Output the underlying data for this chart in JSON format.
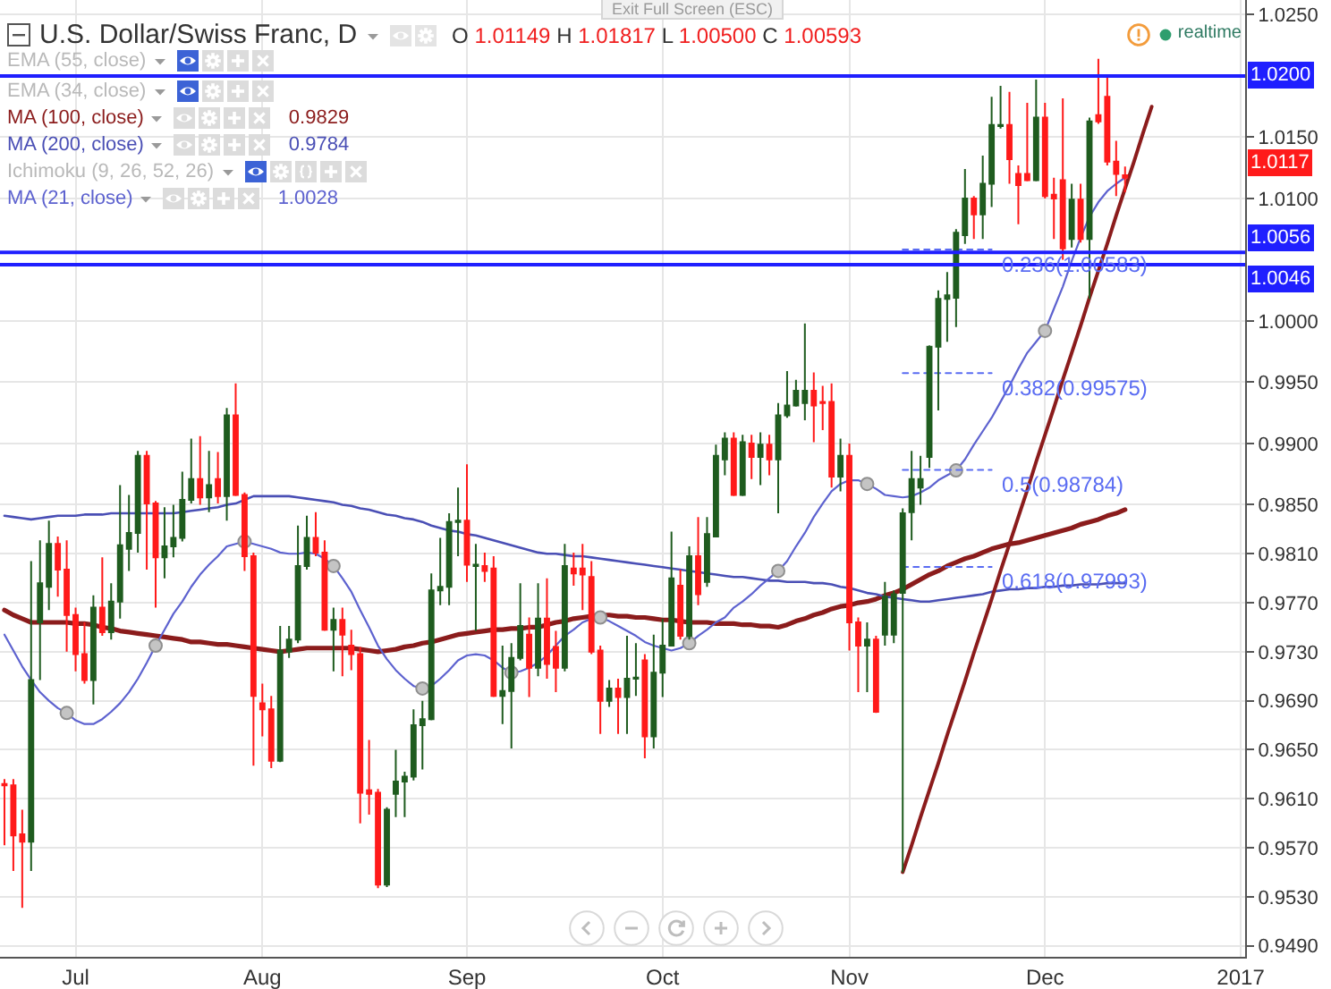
{
  "chart_data": {
    "type": "candlestick",
    "title": "U.S. Dollar/Swiss Franc, D",
    "subtitle": "O 1.01149 H 1.01817 L 1.00500 C 1.00593",
    "categories": [
      null,
      null,
      null,
      null,
      null,
      null,
      null,
      null,
      "Jul",
      null,
      null,
      null,
      null,
      null,
      null,
      null,
      null,
      null,
      null,
      null,
      null,
      null,
      null,
      null,
      null,
      null,
      null,
      null,
      null,
      "Aug",
      null,
      null,
      null,
      null,
      null,
      null,
      null,
      null,
      null,
      null,
      null,
      null,
      null,
      null,
      null,
      null,
      null,
      null,
      null,
      null,
      null,
      null,
      "Sep",
      null,
      null,
      null,
      null,
      null,
      null,
      null,
      null,
      null,
      null,
      null,
      null,
      null,
      null,
      null,
      null,
      null,
      null,
      null,
      null,
      null,
      "Oct",
      null,
      null,
      null,
      null,
      null,
      null,
      null,
      null,
      null,
      null,
      null,
      null,
      null,
      null,
      null,
      null,
      null,
      null,
      null,
      null,
      "Nov",
      null,
      null,
      null,
      null,
      null,
      null,
      null,
      null,
      null,
      null,
      null,
      null,
      null,
      null,
      null,
      null,
      null,
      null,
      null,
      null,
      null,
      "Dec",
      null,
      null,
      null,
      null,
      null,
      null,
      null,
      null,
      null,
      null,
      null,
      null,
      null,
      null,
      null,
      null,
      null,
      null,
      null,
      null,
      null,
      "2017"
    ],
    "ohlc": [
      [
        0.9622,
        0.9626,
        0.9572,
        0.9621
      ],
      [
        0.9621,
        0.9626,
        0.9551,
        0.958
      ],
      [
        0.9581,
        0.9601,
        0.9521,
        0.9575
      ],
      [
        0.9575,
        0.9804,
        0.9551,
        0.9707
      ],
      [
        0.9754,
        0.9821,
        0.9707,
        0.9786
      ],
      [
        0.9783,
        0.9837,
        0.9764,
        0.9818
      ],
      [
        0.9818,
        0.9824,
        0.9775,
        0.9797
      ],
      [
        0.9797,
        0.9821,
        0.973,
        0.976
      ],
      [
        0.976,
        0.9766,
        0.9714,
        0.9728
      ],
      [
        0.9728,
        0.9754,
        0.9704,
        0.9707
      ],
      [
        0.9707,
        0.9776,
        0.9687,
        0.9766
      ],
      [
        0.9766,
        0.9807,
        0.9743,
        0.9746
      ],
      [
        0.9746,
        0.9786,
        0.974,
        0.9771
      ],
      [
        0.9771,
        0.9866,
        0.9757,
        0.9817
      ],
      [
        0.9814,
        0.9858,
        0.9796,
        0.9827
      ],
      [
        0.9827,
        0.9894,
        0.9811,
        0.989
      ],
      [
        0.989,
        0.9894,
        0.9797,
        0.9851
      ],
      [
        0.9851,
        0.9853,
        0.9766,
        0.9807
      ],
      [
        0.9807,
        0.9848,
        0.979,
        0.9816
      ],
      [
        0.9816,
        0.985,
        0.9807,
        0.9823
      ],
      [
        0.9823,
        0.9877,
        0.982,
        0.9854
      ],
      [
        0.9854,
        0.9904,
        0.9851,
        0.9871
      ],
      [
        0.9871,
        0.9906,
        0.985,
        0.9856
      ],
      [
        0.9856,
        0.9894,
        0.9844,
        0.9866
      ],
      [
        0.9871,
        0.9893,
        0.9851,
        0.9857
      ],
      [
        0.9857,
        0.9929,
        0.9837,
        0.9923
      ],
      [
        0.9923,
        0.9949,
        0.9857,
        0.9858
      ],
      [
        0.9858,
        0.986,
        0.9796,
        0.9808
      ],
      [
        0.9808,
        0.9811,
        0.9637,
        0.9694
      ],
      [
        0.9688,
        0.9704,
        0.9661,
        0.9683
      ],
      [
        0.9683,
        0.9694,
        0.9635,
        0.9641
      ],
      [
        0.9641,
        0.9751,
        0.964,
        0.9731
      ],
      [
        0.973,
        0.9751,
        0.9725,
        0.974
      ],
      [
        0.974,
        0.9833,
        0.9737,
        0.98
      ],
      [
        0.98,
        0.9841,
        0.9797,
        0.9823
      ],
      [
        0.9823,
        0.9844,
        0.9808,
        0.9811
      ],
      [
        0.9811,
        0.9821,
        0.9747,
        0.9748
      ],
      [
        0.9748,
        0.9766,
        0.9714,
        0.9756
      ],
      [
        0.9756,
        0.9766,
        0.971,
        0.9744
      ],
      [
        0.9735,
        0.9748,
        0.9715,
        0.9728
      ],
      [
        0.9728,
        0.9734,
        0.959,
        0.9615
      ],
      [
        0.9617,
        0.9658,
        0.9597,
        0.9614
      ],
      [
        0.9615,
        0.9618,
        0.9537,
        0.954
      ],
      [
        0.954,
        0.9603,
        0.9538,
        0.9601
      ],
      [
        0.9614,
        0.965,
        0.9595,
        0.9624
      ],
      [
        0.9624,
        0.9632,
        0.9595,
        0.9628
      ],
      [
        0.9628,
        0.9683,
        0.9625,
        0.967
      ],
      [
        0.967,
        0.969,
        0.9634,
        0.9675
      ],
      [
        0.9675,
        0.9794,
        0.9674,
        0.978
      ],
      [
        0.978,
        0.9823,
        0.9768,
        0.9783
      ],
      [
        0.9783,
        0.9843,
        0.9768,
        0.9836
      ],
      [
        0.9836,
        0.9864,
        0.9808,
        0.9837
      ],
      [
        0.9837,
        0.9883,
        0.9787,
        0.9801
      ],
      [
        0.98,
        0.9818,
        0.9747,
        0.9801
      ],
      [
        0.98,
        0.9811,
        0.9787,
        0.9796
      ],
      [
        0.9798,
        0.9808,
        0.9693,
        0.9694
      ],
      [
        0.9694,
        0.9735,
        0.9671,
        0.9698
      ],
      [
        0.9698,
        0.9737,
        0.9651,
        0.9725
      ],
      [
        0.9725,
        0.9786,
        0.9723,
        0.9751
      ],
      [
        0.9744,
        0.9758,
        0.9693,
        0.9717
      ],
      [
        0.9717,
        0.9786,
        0.971,
        0.9757
      ],
      [
        0.9757,
        0.979,
        0.9708,
        0.972
      ],
      [
        0.9734,
        0.9747,
        0.9697,
        0.9717
      ],
      [
        0.9717,
        0.9818,
        0.9714,
        0.98
      ],
      [
        0.9798,
        0.9811,
        0.9784,
        0.9794
      ],
      [
        0.9798,
        0.9818,
        0.9764,
        0.9793
      ],
      [
        0.9791,
        0.9804,
        0.9728,
        0.973
      ],
      [
        0.9731,
        0.9735,
        0.9663,
        0.969
      ],
      [
        0.969,
        0.9707,
        0.9685,
        0.97
      ],
      [
        0.97,
        0.9708,
        0.9663,
        0.9693
      ],
      [
        0.9693,
        0.9743,
        0.9663,
        0.9708
      ],
      [
        0.9708,
        0.9737,
        0.9694,
        0.9709
      ],
      [
        0.9723,
        0.9728,
        0.9643,
        0.9661
      ],
      [
        0.9661,
        0.9744,
        0.9651,
        0.9713
      ],
      [
        0.9713,
        0.9757,
        0.9693,
        0.9735
      ],
      [
        0.9735,
        0.9828,
        0.9735,
        0.979
      ],
      [
        0.9784,
        0.9797,
        0.974,
        0.9743
      ],
      [
        0.9743,
        0.9816,
        0.974,
        0.9808
      ],
      [
        0.9808,
        0.984,
        0.9768,
        0.9777
      ],
      [
        0.9787,
        0.984,
        0.9783,
        0.9826
      ],
      [
        0.9824,
        0.9899,
        0.9824,
        0.989
      ],
      [
        0.9887,
        0.9909,
        0.9874,
        0.9904
      ],
      [
        0.9904,
        0.9909,
        0.9857,
        0.9858
      ],
      [
        0.9858,
        0.9907,
        0.9857,
        0.9901
      ],
      [
        0.99,
        0.9907,
        0.9871,
        0.9889
      ],
      [
        0.9889,
        0.9909,
        0.9866,
        0.9899
      ],
      [
        0.9899,
        0.9907,
        0.9874,
        0.9887
      ],
      [
        0.9887,
        0.9933,
        0.9843,
        0.9923
      ],
      [
        0.9923,
        0.9959,
        0.9921,
        0.9931
      ],
      [
        0.9931,
        0.9952,
        0.993,
        0.9943
      ],
      [
        0.9933,
        0.9998,
        0.9919,
        0.9943
      ],
      [
        0.9943,
        0.9958,
        0.9901,
        0.9931
      ],
      [
        0.9934,
        0.9947,
        0.9911,
        0.9933
      ],
      [
        0.9934,
        0.9949,
        0.9864,
        0.9873
      ],
      [
        0.9873,
        0.9904,
        0.9861,
        0.989
      ],
      [
        0.989,
        0.99,
        0.9731,
        0.9754
      ],
      [
        0.9754,
        0.9758,
        0.9697,
        0.9735
      ],
      [
        0.9735,
        0.9754,
        0.9697,
        0.974
      ],
      [
        0.974,
        0.9743,
        0.968,
        0.9681
      ],
      [
        0.9744,
        0.9787,
        0.9735,
        0.9775
      ],
      [
        0.9744,
        0.978,
        0.9737,
        0.9777
      ],
      [
        0.9778,
        0.9847,
        0.955,
        0.9843
      ],
      [
        0.9844,
        0.9894,
        0.9821,
        0.9871
      ],
      [
        0.9864,
        0.989,
        0.985,
        0.9871
      ],
      [
        0.9889,
        0.998,
        0.988,
        0.9979
      ],
      [
        0.9979,
        1.0025,
        0.9927,
        1.0018
      ],
      [
        1.0018,
        1.004,
        0.9983,
        1.0021
      ],
      [
        1.0019,
        1.0075,
        0.9995,
        1.0072
      ],
      [
        1.007,
        1.0124,
        1.0063,
        1.01
      ],
      [
        1.01,
        1.0102,
        1.0067,
        1.0087
      ],
      [
        1.0087,
        1.0135,
        1.0067,
        1.0112
      ],
      [
        1.0112,
        1.0183,
        1.0093,
        1.016
      ],
      [
        1.0159,
        1.0192,
        1.0157,
        1.016
      ],
      [
        1.016,
        1.0187,
        1.0112,
        1.0132
      ],
      [
        1.012,
        1.0127,
        1.0079,
        1.0111
      ],
      [
        1.012,
        1.0178,
        1.0114,
        1.0115
      ],
      [
        1.0115,
        1.0197,
        1.0114,
        1.0166
      ],
      [
        1.0166,
        1.0178,
        1.01,
        1.0102
      ],
      [
        1.0103,
        1.0117,
        1.0067,
        1.01
      ],
      [
        1.01149,
        1.01817,
        1.005,
        1.00593
      ],
      [
        1.0067,
        1.0112,
        1.006,
        1.0099
      ],
      [
        1.0099,
        1.0112,
        1.0064,
        1.0067
      ],
      [
        1.0067,
        1.0166,
        1.0018,
        1.0163
      ],
      [
        1.0168,
        1.0214,
        1.0161,
        1.0163
      ],
      [
        1.0183,
        1.0199,
        1.0127,
        1.013
      ],
      [
        1.013,
        1.0147,
        1.0102,
        1.012
      ],
      [
        1.0119,
        1.0126,
        1.0105,
        1.0117
      ],
      null,
      null,
      null,
      null,
      null,
      null,
      null,
      null,
      null,
      null,
      null,
      null,
      null
    ],
    "colors": [
      "#ff1a1a",
      "#ff1a1a",
      "#ff1a1a",
      "#1f5c1f",
      "#1f5c1f",
      "#1f5c1f",
      "#ff1a1a",
      "#ff1a1a",
      "#ff1a1a",
      "#ff1a1a",
      "#1f5c1f",
      "#ff1a1a",
      "#1f5c1f",
      "#1f5c1f",
      "#1f5c1f",
      "#1f5c1f",
      "#ff1a1a",
      "#ff1a1a",
      "#1f5c1f",
      "#1f5c1f",
      "#1f5c1f",
      "#1f5c1f",
      "#ff1a1a",
      "#1f5c1f",
      "#ff1a1a",
      "#1f5c1f",
      "#ff1a1a",
      "#ff1a1a",
      "#ff1a1a",
      "#ff1a1a",
      "#ff1a1a",
      "#1f5c1f",
      "#1f5c1f",
      "#1f5c1f",
      "#1f5c1f",
      "#ff1a1a",
      "#ff1a1a",
      "#1f5c1f",
      "#ff1a1a",
      "#ff1a1a",
      "#ff1a1a",
      "#ff1a1a",
      "#ff1a1a",
      "#1f5c1f",
      "#1f5c1f",
      "#1f5c1f",
      "#1f5c1f",
      "#1f5c1f",
      "#1f5c1f",
      "#1f5c1f",
      "#1f5c1f",
      "#1f5c1f",
      "#ff1a1a",
      "#1f5c1f",
      "#ff1a1a",
      "#ff1a1a",
      "#1f5c1f",
      "#1f5c1f",
      "#1f5c1f",
      "#ff1a1a",
      "#1f5c1f",
      "#ff1a1a",
      "#ff1a1a",
      "#1f5c1f",
      "#ff1a1a",
      "#ff1a1a",
      "#ff1a1a",
      "#ff1a1a",
      "#1f5c1f",
      "#ff1a1a",
      "#1f5c1f",
      "#1f5c1f",
      "#ff1a1a",
      "#1f5c1f",
      "#1f5c1f",
      "#1f5c1f",
      "#ff1a1a",
      "#1f5c1f",
      "#ff1a1a",
      "#1f5c1f",
      "#1f5c1f",
      "#1f5c1f",
      "#ff1a1a",
      "#1f5c1f",
      "#ff1a1a",
      "#1f5c1f",
      "#ff1a1a",
      "#1f5c1f",
      "#1f5c1f",
      "#1f5c1f",
      "#1f5c1f",
      "#ff1a1a",
      "#ff1a1a",
      "#ff1a1a",
      "#1f5c1f",
      "#ff1a1a",
      "#ff1a1a",
      "#1f5c1f",
      "#ff1a1a",
      "#1f5c1f",
      "#1f5c1f",
      "#1f5c1f",
      "#1f5c1f",
      "#1f5c1f",
      "#1f5c1f",
      "#1f5c1f",
      "#1f5c1f",
      "#1f5c1f",
      "#1f5c1f",
      "#ff1a1a",
      "#1f5c1f",
      "#1f5c1f",
      "#1f5c1f",
      "#ff1a1a",
      "#ff1a1a",
      "#ff1a1a",
      "#1f5c1f",
      "#ff1a1a",
      "#ff1a1a",
      "#ff1a1a",
      "#1f5c1f",
      "#ff1a1a",
      "#1f5c1f",
      "#ff1a1a",
      "#ff1a1a",
      "#ff1a1a",
      "#ff1a1a",
      null,
      null,
      null,
      null,
      null,
      null,
      null,
      null,
      null,
      null,
      null,
      null,
      null
    ],
    "series": [
      {
        "name": "MA (100, close)",
        "type": "line",
        "color": "#8b1c1c",
        "values": [
          0.9764,
          0.976,
          0.9757,
          0.9754,
          0.9754,
          0.9754,
          0.9754,
          0.9754,
          0.9753,
          0.9753,
          0.9752,
          0.975,
          0.9749,
          0.9747,
          0.9746,
          0.9745,
          0.9744,
          0.9743,
          0.9742,
          0.9741,
          0.974,
          0.9738,
          0.9738,
          0.9737,
          0.9736,
          0.9736,
          0.9735,
          0.9734,
          0.9733,
          0.9732,
          0.9731,
          0.973,
          0.9731,
          0.9732,
          0.9733,
          0.9733,
          0.9733,
          0.9733,
          0.9733,
          0.9733,
          0.9732,
          0.9731,
          0.973,
          0.9731,
          0.9732,
          0.9734,
          0.9735,
          0.9737,
          0.9738,
          0.974,
          0.9742,
          0.9744,
          0.9745,
          0.9746,
          0.9747,
          0.9748,
          0.9748,
          0.9749,
          0.9749,
          0.975,
          0.975,
          0.9752,
          0.9754,
          0.9755,
          0.9757,
          0.9758,
          0.9759,
          0.976,
          0.976,
          0.9759,
          0.9759,
          0.9758,
          0.9758,
          0.9757,
          0.9756,
          0.9756,
          0.9755,
          0.9754,
          0.9754,
          0.9754,
          0.9753,
          0.9753,
          0.9753,
          0.9752,
          0.9752,
          0.9751,
          0.9751,
          0.975,
          0.9752,
          0.9755,
          0.9757,
          0.976,
          0.9762,
          0.9765,
          0.9767,
          0.9768,
          0.977,
          0.9771,
          0.9773,
          0.9776,
          0.9778,
          0.9781,
          0.9785,
          0.9789,
          0.9793,
          0.9796,
          0.98,
          0.9803,
          0.9806,
          0.9808,
          0.9811,
          0.9814,
          0.9816,
          0.9818,
          0.9819,
          0.9821,
          0.9823,
          0.9825,
          0.9827,
          0.9829,
          0.9831,
          0.9834,
          0.9836,
          0.9838,
          0.9841,
          0.9843,
          0.9846,
          null,
          null,
          null,
          null,
          null,
          null,
          null,
          null,
          null,
          null,
          null,
          null,
          null
        ]
      },
      {
        "name": "MA (200, close)",
        "type": "line",
        "color": "#4a4fb5",
        "values": [
          0.9841,
          0.984,
          0.9839,
          0.9838,
          0.9839,
          0.984,
          0.9841,
          0.9841,
          0.9841,
          0.9842,
          0.9842,
          0.9842,
          0.9843,
          0.9843,
          0.9843,
          0.9843,
          0.9843,
          0.9843,
          0.9843,
          0.9843,
          0.9844,
          0.9845,
          0.9846,
          0.9847,
          0.9848,
          0.985,
          0.9851,
          0.9854,
          0.9857,
          0.9857,
          0.9857,
          0.9857,
          0.9857,
          0.9856,
          0.9855,
          0.9854,
          0.9853,
          0.9852,
          0.985,
          0.9849,
          0.9847,
          0.9846,
          0.9844,
          0.9842,
          0.9841,
          0.9839,
          0.9838,
          0.9836,
          0.9833,
          0.9831,
          0.9829,
          0.9828,
          0.9826,
          0.9825,
          0.9823,
          0.9821,
          0.9819,
          0.9817,
          0.9815,
          0.9813,
          0.9811,
          0.981,
          0.981,
          0.9809,
          0.9808,
          0.9808,
          0.9807,
          0.9806,
          0.9805,
          0.9804,
          0.9803,
          0.9802,
          0.9801,
          0.98,
          0.9799,
          0.9798,
          0.9797,
          0.9796,
          0.9795,
          0.9794,
          0.9793,
          0.9792,
          0.9791,
          0.9791,
          0.979,
          0.9789,
          0.9788,
          0.9788,
          0.9787,
          0.9787,
          0.9787,
          0.9786,
          0.9786,
          0.9785,
          0.9783,
          0.9782,
          0.978,
          0.9778,
          0.9777,
          0.9775,
          0.9774,
          0.9773,
          0.9772,
          0.9771,
          0.9771,
          0.9772,
          0.9773,
          0.9774,
          0.9775,
          0.9776,
          0.9777,
          0.9779,
          0.978,
          0.9781,
          0.9781,
          0.9782,
          0.9782,
          0.9783,
          0.9783,
          0.9784,
          0.9784,
          0.9785,
          0.9785,
          0.9785,
          0.9786,
          0.9786,
          0.9786,
          null,
          null,
          null,
          null,
          null,
          null,
          null,
          null,
          null,
          null,
          null,
          null,
          null
        ]
      },
      {
        "name": "MA (21, close)",
        "type": "line",
        "color": "#5d62cf",
        "values": [
          0.9744,
          0.9731,
          0.9718,
          0.9707,
          0.9697,
          0.969,
          0.9684,
          0.968,
          0.9674,
          0.9671,
          0.9671,
          0.9675,
          0.9681,
          0.9688,
          0.9697,
          0.9708,
          0.9721,
          0.9735,
          0.9748,
          0.9761,
          0.9771,
          0.9783,
          0.9793,
          0.9801,
          0.9808,
          0.9816,
          0.9818,
          0.982,
          0.9818,
          0.9816,
          0.9814,
          0.9811,
          0.981,
          0.981,
          0.9811,
          0.981,
          0.9806,
          0.98,
          0.979,
          0.9779,
          0.9764,
          0.975,
          0.9735,
          0.9724,
          0.9715,
          0.9708,
          0.9702,
          0.97,
          0.9702,
          0.9708,
          0.9715,
          0.9723,
          0.9727,
          0.9728,
          0.9727,
          0.9723,
          0.9717,
          0.9713,
          0.9714,
          0.9717,
          0.9721,
          0.9727,
          0.9735,
          0.9743,
          0.9748,
          0.9754,
          0.9757,
          0.9758,
          0.9755,
          0.9751,
          0.9747,
          0.9743,
          0.9738,
          0.9735,
          0.9733,
          0.9731,
          0.9733,
          0.9737,
          0.9743,
          0.9748,
          0.9754,
          0.9758,
          0.9766,
          0.9771,
          0.9777,
          0.9784,
          0.979,
          0.9796,
          0.9804,
          0.9816,
          0.9827,
          0.984,
          0.9851,
          0.9861,
          0.9867,
          0.987,
          0.987,
          0.9867,
          0.9863,
          0.9858,
          0.9857,
          0.9856,
          0.9857,
          0.986,
          0.9864,
          0.987,
          0.9874,
          0.9878,
          0.9887,
          0.9899,
          0.991,
          0.9921,
          0.9934,
          0.9947,
          0.9961,
          0.9974,
          0.9983,
          0.9992,
          1.001,
          1.0028,
          1.0049,
          1.0068,
          1.0085,
          1.0097,
          1.0106,
          1.0112,
          1.0117,
          null,
          null,
          null,
          null,
          null,
          null,
          null,
          null,
          null,
          null,
          null,
          null,
          null
        ]
      },
      {
        "type": "scatter",
        "color": "#c4c4c4",
        "marker": "circle",
        "values": [
          null,
          null,
          null,
          null,
          null,
          null,
          null,
          0.968,
          null,
          null,
          null,
          null,
          null,
          null,
          null,
          null,
          null,
          0.9735,
          null,
          null,
          null,
          null,
          null,
          null,
          null,
          null,
          null,
          0.982,
          null,
          null,
          null,
          null,
          null,
          null,
          null,
          null,
          null,
          0.98,
          null,
          null,
          null,
          null,
          null,
          null,
          null,
          null,
          null,
          0.97,
          null,
          null,
          null,
          null,
          null,
          null,
          null,
          null,
          null,
          0.9713,
          null,
          null,
          null,
          null,
          null,
          null,
          null,
          null,
          null,
          0.9758,
          null,
          null,
          null,
          null,
          null,
          null,
          null,
          null,
          null,
          0.9737,
          null,
          null,
          null,
          null,
          null,
          null,
          null,
          null,
          null,
          0.9796,
          null,
          null,
          null,
          null,
          null,
          null,
          null,
          null,
          null,
          0.9867,
          null,
          null,
          null,
          null,
          null,
          null,
          null,
          null,
          null,
          0.9878,
          null,
          null,
          null,
          null,
          null,
          null,
          null,
          null,
          null,
          0.9992,
          null,
          null,
          null,
          null,
          null,
          null,
          null,
          null,
          null,
          null,
          null,
          null,
          null,
          null,
          null,
          null,
          null,
          null,
          null,
          null,
          null,
          null
        ]
      },
      {
        "type": "line",
        "color": "#8b1c1c",
        "values": [
          null,
          null,
          null,
          null,
          null,
          null,
          null,
          null,
          null,
          null,
          null,
          null,
          null,
          null,
          null,
          null,
          null,
          null,
          null,
          null,
          null,
          null,
          null,
          null,
          null,
          null,
          null,
          null,
          null,
          null,
          null,
          null,
          null,
          null,
          null,
          null,
          null,
          null,
          null,
          null,
          null,
          null,
          null,
          null,
          null,
          null,
          null,
          null,
          null,
          null,
          null,
          null,
          null,
          null,
          null,
          null,
          null,
          null,
          null,
          null,
          null,
          null,
          null,
          null,
          null,
          null,
          null,
          null,
          null,
          null,
          null,
          null,
          null,
          null,
          null,
          null,
          null,
          null,
          null,
          null,
          null,
          null,
          null,
          null,
          null,
          null,
          null,
          null,
          null,
          null,
          null,
          null,
          null,
          null,
          null,
          null,
          null,
          null,
          null,
          null,
          null,
          0.955,
          0.9572,
          0.9595,
          0.9617,
          0.9639,
          0.9662,
          0.9684,
          0.9706,
          0.9729,
          0.9751,
          0.9773,
          0.9796,
          0.9818,
          0.984,
          0.9862,
          0.9885,
          0.9907,
          0.9929,
          0.9952,
          0.9974,
          0.9996,
          1.0019,
          1.0041,
          1.0063,
          1.0086,
          1.0108,
          1.013,
          1.0153,
          1.0175,
          null,
          null,
          null,
          null,
          null,
          null,
          null,
          null,
          null,
          null
        ]
      },
      {
        "type": "line",
        "color": "#5a6cf2",
        "line_style": "dotted",
        "values": [
          null,
          null,
          null,
          null,
          null,
          null,
          null,
          null,
          null,
          null,
          null,
          null,
          null,
          null,
          null,
          null,
          null,
          null,
          null,
          null,
          null,
          null,
          null,
          null,
          null,
          null,
          null,
          null,
          null,
          null,
          null,
          null,
          null,
          null,
          null,
          null,
          null,
          null,
          null,
          null,
          null,
          null,
          null,
          null,
          null,
          null,
          null,
          null,
          null,
          null,
          null,
          null,
          null,
          null,
          null,
          null,
          null,
          null,
          null,
          null,
          null,
          null,
          null,
          null,
          null,
          null,
          null,
          null,
          null,
          null,
          null,
          null,
          null,
          null,
          null,
          null,
          null,
          null,
          null,
          null,
          null,
          null,
          null,
          null,
          null,
          null,
          null,
          null,
          null,
          null,
          null,
          null,
          null,
          null,
          null,
          null,
          null,
          null,
          null,
          null,
          null,
          1.00583,
          1.00583,
          1.00583,
          1.00583,
          1.00583,
          1.00583,
          1.00583,
          1.00583,
          1.00583,
          1.00583,
          1.00583,
          null,
          null,
          null,
          null,
          null,
          null,
          null,
          null,
          null,
          null,
          null,
          null,
          null,
          null,
          null,
          null,
          null,
          null,
          null,
          null,
          null,
          null,
          null,
          null,
          null,
          null,
          null,
          null
        ]
      },
      {
        "type": "line",
        "color": "#5a6cf2",
        "line_style": "dotted",
        "values": [
          null,
          null,
          null,
          null,
          null,
          null,
          null,
          null,
          null,
          null,
          null,
          null,
          null,
          null,
          null,
          null,
          null,
          null,
          null,
          null,
          null,
          null,
          null,
          null,
          null,
          null,
          null,
          null,
          null,
          null,
          null,
          null,
          null,
          null,
          null,
          null,
          null,
          null,
          null,
          null,
          null,
          null,
          null,
          null,
          null,
          null,
          null,
          null,
          null,
          null,
          null,
          null,
          null,
          null,
          null,
          null,
          null,
          null,
          null,
          null,
          null,
          null,
          null,
          null,
          null,
          null,
          null,
          null,
          null,
          null,
          null,
          null,
          null,
          null,
          null,
          null,
          null,
          null,
          null,
          null,
          null,
          null,
          null,
          null,
          null,
          null,
          null,
          null,
          null,
          null,
          null,
          null,
          null,
          null,
          null,
          null,
          null,
          null,
          null,
          null,
          null,
          0.99575,
          0.99575,
          0.99575,
          0.99575,
          0.99575,
          0.99575,
          0.99575,
          0.99575,
          0.99575,
          0.99575,
          0.99575,
          null,
          null,
          null,
          null,
          null,
          null,
          null,
          null,
          null,
          null,
          null,
          null,
          null,
          null,
          null,
          null,
          null,
          null,
          null,
          null,
          null,
          null,
          null,
          null,
          null,
          null,
          null,
          null
        ]
      },
      {
        "type": "line",
        "color": "#5a6cf2",
        "line_style": "dotted",
        "values": [
          null,
          null,
          null,
          null,
          null,
          null,
          null,
          null,
          null,
          null,
          null,
          null,
          null,
          null,
          null,
          null,
          null,
          null,
          null,
          null,
          null,
          null,
          null,
          null,
          null,
          null,
          null,
          null,
          null,
          null,
          null,
          null,
          null,
          null,
          null,
          null,
          null,
          null,
          null,
          null,
          null,
          null,
          null,
          null,
          null,
          null,
          null,
          null,
          null,
          null,
          null,
          null,
          null,
          null,
          null,
          null,
          null,
          null,
          null,
          null,
          null,
          null,
          null,
          null,
          null,
          null,
          null,
          null,
          null,
          null,
          null,
          null,
          null,
          null,
          null,
          null,
          null,
          null,
          null,
          null,
          null,
          null,
          null,
          null,
          null,
          null,
          null,
          null,
          null,
          null,
          null,
          null,
          null,
          null,
          null,
          null,
          null,
          null,
          null,
          null,
          null,
          0.98784,
          0.98784,
          0.98784,
          0.98784,
          0.98784,
          0.98784,
          0.98784,
          0.98784,
          0.98784,
          0.98784,
          0.98784,
          null,
          null,
          null,
          null,
          null,
          null,
          null,
          null,
          null,
          null,
          null,
          null,
          null,
          null,
          null,
          null,
          null,
          null,
          null,
          null,
          null,
          null,
          null,
          null,
          null,
          null,
          null,
          null
        ]
      },
      {
        "type": "line",
        "color": "#5a6cf2",
        "line_style": "dotted",
        "values": [
          null,
          null,
          null,
          null,
          null,
          null,
          null,
          null,
          null,
          null,
          null,
          null,
          null,
          null,
          null,
          null,
          null,
          null,
          null,
          null,
          null,
          null,
          null,
          null,
          null,
          null,
          null,
          null,
          null,
          null,
          null,
          null,
          null,
          null,
          null,
          null,
          null,
          null,
          null,
          null,
          null,
          null,
          null,
          null,
          null,
          null,
          null,
          null,
          null,
          null,
          null,
          null,
          null,
          null,
          null,
          null,
          null,
          null,
          null,
          null,
          null,
          null,
          null,
          null,
          null,
          null,
          null,
          null,
          null,
          null,
          null,
          null,
          null,
          null,
          null,
          null,
          null,
          null,
          null,
          null,
          null,
          null,
          null,
          null,
          null,
          null,
          null,
          null,
          null,
          null,
          null,
          null,
          null,
          null,
          null,
          null,
          null,
          null,
          null,
          null,
          null,
          0.97993,
          0.97993,
          0.97993,
          0.97993,
          0.97993,
          0.97993,
          0.97993,
          0.97993,
          0.97993,
          0.97993,
          0.97993,
          null,
          null,
          null,
          null,
          null,
          null,
          null,
          null,
          null,
          null,
          null,
          null,
          null,
          null,
          null,
          null,
          null,
          null,
          null,
          null,
          null,
          null,
          null,
          null,
          null,
          null,
          null,
          null
        ]
      }
    ],
    "ref_lines": [
      {
        "axis": "y",
        "value": 1.02,
        "label": "1.0200",
        "color": "#1f1fff"
      },
      {
        "axis": "y",
        "value": 1.0056,
        "label": "1.0056",
        "color": "#1f1fff"
      },
      {
        "axis": "y",
        "value": 1.0046,
        "label": "1.0046",
        "color": "#1f1fff"
      }
    ],
    "annotations": [
      "Exit Full Screen (ESC)",
      "realtime",
      "EMA (55, close)",
      "EMA (34, close)",
      "0.9829",
      "0.9784",
      "Ichimoku (9, 26, 52, 26)",
      "1.0028",
      "1.0117",
      "0.236(1.00583)",
      "0.382(0.99575)",
      "0.5(0.98784)",
      "0.618(0.97993)"
    ],
    "ylim": [
      0.9481,
      1.0262
    ],
    "yticks": [
      {
        "value": 1.025,
        "label": "1.0250"
      },
      {
        "value": 1.015,
        "label": "1.0150"
      },
      {
        "value": 1.01,
        "label": "1.0100"
      },
      {
        "value": 1.0,
        "label": "1.0000"
      },
      {
        "value": 0.995,
        "label": "0.9950"
      },
      {
        "value": 0.99,
        "label": "0.9900"
      },
      {
        "value": 0.985,
        "label": "0.9850"
      },
      {
        "value": 0.981,
        "label": "0.9810"
      },
      {
        "value": 0.977,
        "label": "0.9770"
      },
      {
        "value": 0.973,
        "label": "0.9730"
      },
      {
        "value": 0.969,
        "label": "0.9690"
      },
      {
        "value": 0.965,
        "label": "0.9650"
      },
      {
        "value": 0.961,
        "label": "0.9610"
      },
      {
        "value": 0.957,
        "label": "0.9570"
      },
      {
        "value": 0.953,
        "label": "0.9530"
      },
      {
        "value": 0.949,
        "label": "0.9490"
      }
    ],
    "grid": true,
    "legend": "top left"
  }
}
